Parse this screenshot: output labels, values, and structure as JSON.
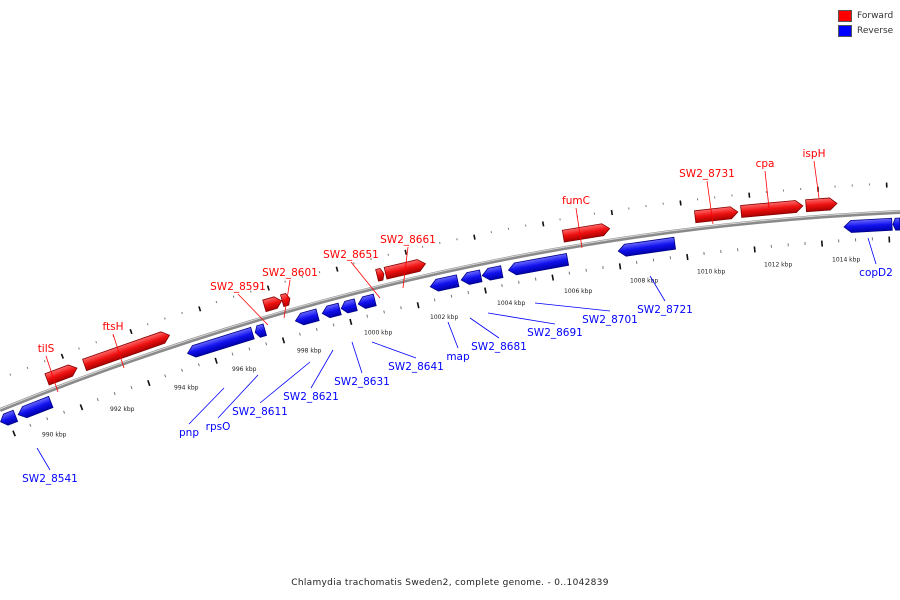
{
  "legend": {
    "forward": {
      "label": "Forward",
      "color": "#ff0000"
    },
    "reverse": {
      "label": "Reverse",
      "color": "#0000ff"
    }
  },
  "caption": "Chlamydia trachomatis Sweden2, complete genome. - 0..1042839",
  "tick_labels": [
    "990 kbp",
    "992 kbp",
    "994 kbp",
    "996 kbp",
    "998 kbp",
    "1000 kbp",
    "1002 kbp",
    "1004 kbp",
    "1006 kbp",
    "1008 kbp",
    "1010 kbp",
    "1012 kbp",
    "1014 kbp"
  ],
  "forward_genes": [
    {
      "name": "tilS"
    },
    {
      "name": "ftsH"
    },
    {
      "name": "SW2_8591"
    },
    {
      "name": "SW2_8601"
    },
    {
      "name": "SW2_8651"
    },
    {
      "name": "SW2_8661"
    },
    {
      "name": "fumC"
    },
    {
      "name": "SW2_8731"
    },
    {
      "name": "cpa"
    },
    {
      "name": "ispH"
    }
  ],
  "reverse_genes": [
    {
      "name": "SW2_8541"
    },
    {
      "name": "pnp"
    },
    {
      "name": "rpsO"
    },
    {
      "name": "SW2_8611"
    },
    {
      "name": "SW2_8621"
    },
    {
      "name": "SW2_8631"
    },
    {
      "name": "SW2_8641"
    },
    {
      "name": "map"
    },
    {
      "name": "SW2_8681"
    },
    {
      "name": "SW2_8691"
    },
    {
      "name": "SW2_8701"
    },
    {
      "name": "SW2_8721"
    },
    {
      "name": "copD2"
    }
  ]
}
